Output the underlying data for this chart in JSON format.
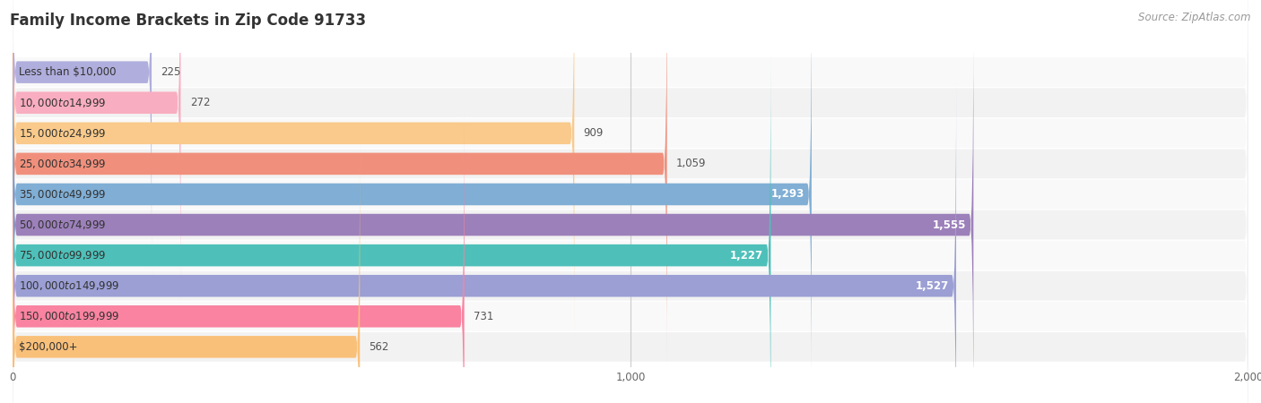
{
  "title": "Family Income Brackets in Zip Code 91733",
  "source": "Source: ZipAtlas.com",
  "categories": [
    "Less than $10,000",
    "$10,000 to $14,999",
    "$15,000 to $24,999",
    "$25,000 to $34,999",
    "$35,000 to $49,999",
    "$50,000 to $74,999",
    "$75,000 to $99,999",
    "$100,000 to $149,999",
    "$150,000 to $199,999",
    "$200,000+"
  ],
  "values": [
    225,
    272,
    909,
    1059,
    1293,
    1555,
    1227,
    1527,
    731,
    562
  ],
  "bar_colors": [
    "#b0aedd",
    "#f9adc0",
    "#f9ca8b",
    "#f0907c",
    "#80aed4",
    "#9c80ba",
    "#4ec0b9",
    "#9b9fd4",
    "#f983a0",
    "#f9c07a"
  ],
  "value_label_colors": [
    "#555555",
    "#555555",
    "#555555",
    "#555555",
    "#ffffff",
    "#ffffff",
    "#ffffff",
    "#ffffff",
    "#555555",
    "#555555"
  ],
  "xlim": [
    0,
    2000
  ],
  "xticks": [
    0,
    1000,
    2000
  ],
  "bar_bg_color": "#efefef",
  "row_bg_color": "#f7f7f7",
  "title_fontsize": 12,
  "source_fontsize": 8.5,
  "label_fontsize": 8.5,
  "value_fontsize": 8.5
}
